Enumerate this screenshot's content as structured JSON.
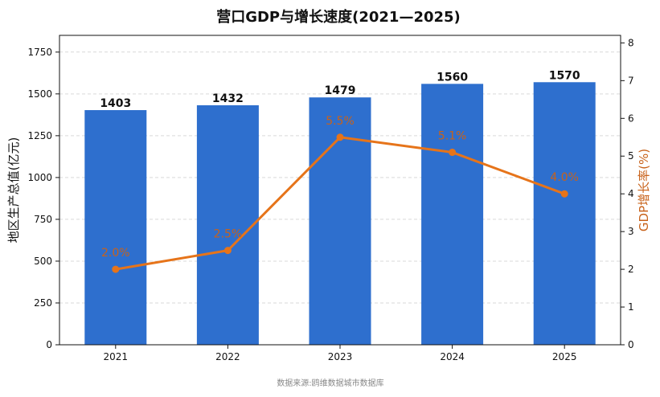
{
  "chart_data": {
    "type": "bar+line",
    "title": "营口GDP与增长速度(2021—2025)",
    "categories": [
      "2021",
      "2022",
      "2023",
      "2024",
      "2025"
    ],
    "series": [
      {
        "type": "bar",
        "axis": "left",
        "values": [
          1403,
          1432,
          1479,
          1560,
          1570
        ],
        "color": "#2e6fce"
      },
      {
        "type": "line",
        "axis": "right",
        "values": [
          2.0,
          2.5,
          5.5,
          5.1,
          4.0
        ],
        "labels": [
          "2.0%",
          "2.5%",
          "5.5%",
          "5.1%",
          "4.0%"
        ],
        "color": "#e6741a"
      }
    ],
    "ylabel_left": "地区生产总值(亿元)",
    "ylabel_right": "GDP增长率(%)",
    "ylim_left": [
      0,
      1850
    ],
    "ylim_right": [
      0,
      8.2
    ],
    "yticks_left": [
      0,
      250,
      500,
      750,
      1000,
      1250,
      1500,
      1750
    ],
    "yticks_right": [
      0,
      1,
      2,
      3,
      4,
      5,
      6,
      7,
      8
    ],
    "grid": "horizontal dashed",
    "source": "数据来源:鸥维数据城市数据库"
  }
}
